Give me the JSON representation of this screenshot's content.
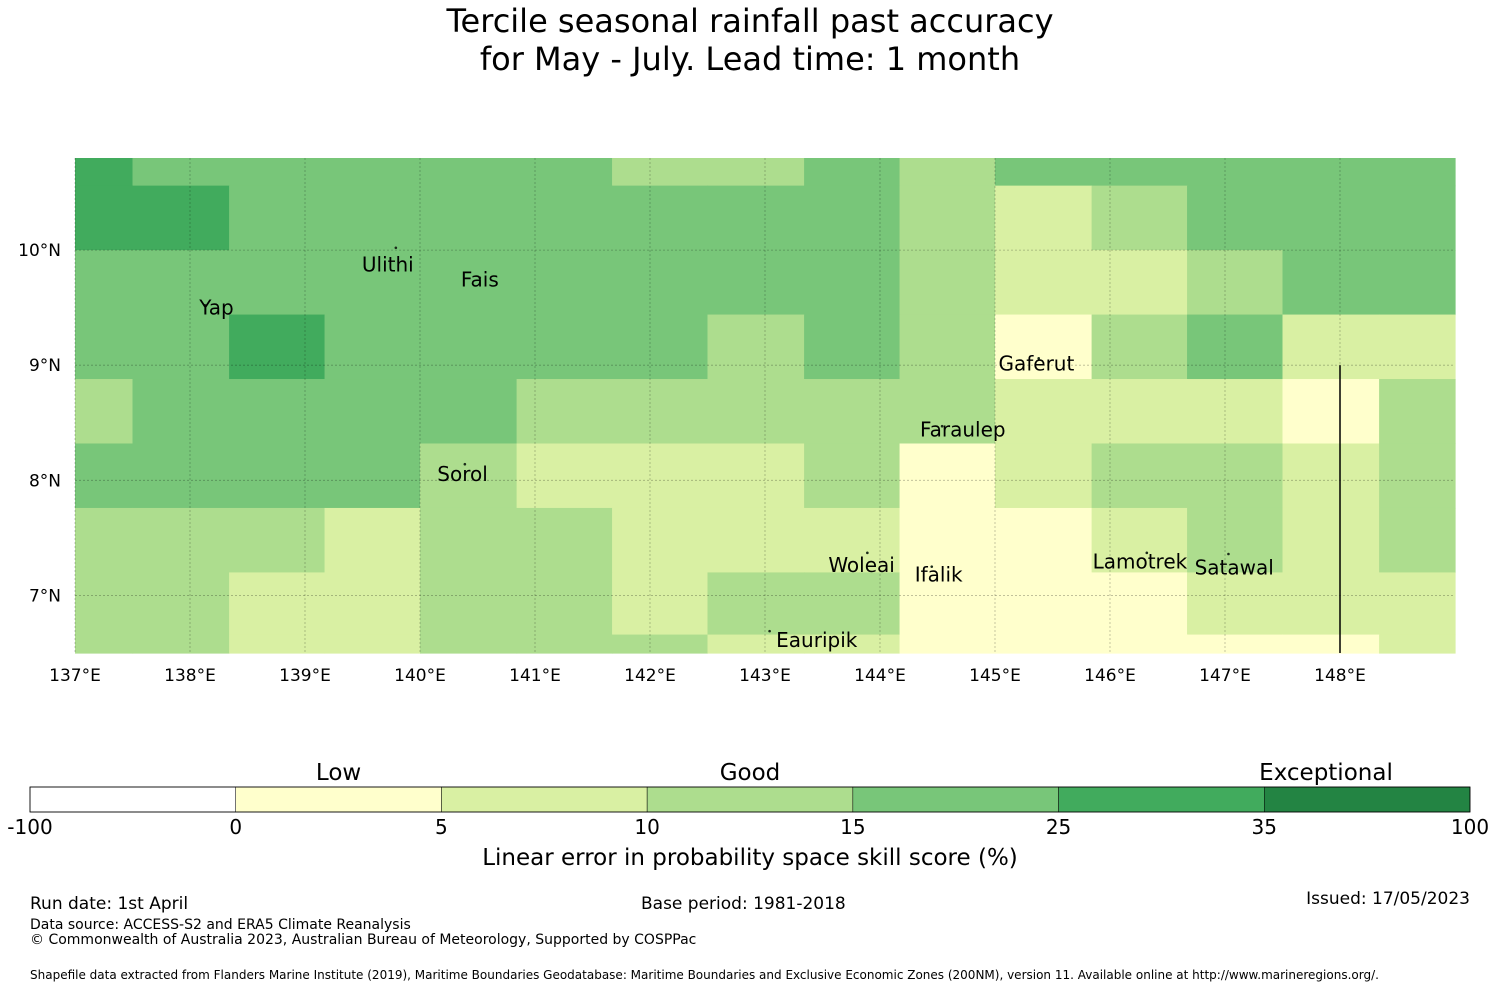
{
  "title": {
    "line1": "Tercile seasonal rainfall past accuracy",
    "line2": "for May - July. Lead time: 1 month"
  },
  "map": {
    "lon_range": [
      137.0,
      149.0
    ],
    "lat_range": [
      6.5,
      10.8
    ],
    "lon_ticks": [
      {
        "value": 137,
        "label": "137°E"
      },
      {
        "value": 138,
        "label": "138°E"
      },
      {
        "value": 139,
        "label": "139°E"
      },
      {
        "value": 140,
        "label": "140°E"
      },
      {
        "value": 141,
        "label": "141°E"
      },
      {
        "value": 142,
        "label": "142°E"
      },
      {
        "value": 143,
        "label": "143°E"
      },
      {
        "value": 144,
        "label": "144°E"
      },
      {
        "value": 145,
        "label": "145°E"
      },
      {
        "value": 146,
        "label": "146°E"
      },
      {
        "value": 147,
        "label": "147°E"
      },
      {
        "value": 148,
        "label": "148°E"
      }
    ],
    "lat_ticks": [
      {
        "value": 10,
        "label": "10°N"
      },
      {
        "value": 9,
        "label": "9°N"
      },
      {
        "value": 8,
        "label": "8°N"
      },
      {
        "value": 7,
        "label": "7°N"
      }
    ],
    "grid_lon_edges": [
      137.0,
      137.5,
      138.34,
      139.17,
      140.0,
      140.84,
      141.67,
      142.5,
      143.34,
      144.17,
      145.0,
      145.84,
      146.67,
      147.5,
      148.34,
      149.0
    ],
    "grid_lat_edges": [
      10.8,
      10.56,
      10.0,
      9.44,
      8.88,
      8.32,
      7.76,
      7.2,
      6.66,
      6.5
    ],
    "grid_classes": [
      [
        5,
        4,
        4,
        4,
        4,
        4,
        3,
        3,
        4,
        3,
        4,
        4,
        4,
        4,
        4
      ],
      [
        5,
        5,
        4,
        4,
        4,
        4,
        4,
        4,
        4,
        3,
        2,
        3,
        4,
        4,
        4
      ],
      [
        4,
        4,
        4,
        4,
        4,
        4,
        4,
        4,
        4,
        3,
        2,
        2,
        3,
        4,
        4
      ],
      [
        4,
        4,
        5,
        4,
        4,
        4,
        4,
        3,
        4,
        3,
        1,
        3,
        4,
        2,
        2
      ],
      [
        3,
        4,
        4,
        4,
        4,
        3,
        3,
        3,
        3,
        3,
        2,
        2,
        2,
        1,
        3
      ],
      [
        4,
        4,
        4,
        4,
        3,
        2,
        2,
        2,
        3,
        1,
        2,
        3,
        3,
        2,
        3
      ],
      [
        3,
        3,
        3,
        2,
        3,
        3,
        2,
        2,
        2,
        1,
        1,
        2,
        3,
        2,
        3
      ],
      [
        3,
        3,
        2,
        2,
        3,
        3,
        2,
        3,
        3,
        1,
        1,
        1,
        2,
        2,
        2
      ],
      [
        3,
        3,
        2,
        2,
        3,
        3,
        3,
        2,
        2,
        1,
        1,
        1,
        1,
        1,
        2
      ]
    ],
    "places": [
      {
        "name": "Ulithi",
        "lon": 139.72,
        "lat": 9.86,
        "dot_lon": 139.79,
        "dot_lat": 10.02
      },
      {
        "name": "Fais",
        "lon": 140.52,
        "lat": 9.73,
        "dot_lon": 140.52,
        "dot_lat": 9.76
      },
      {
        "name": "Yap",
        "lon": 138.23,
        "lat": 9.49,
        "dot_lon": 138.13,
        "dot_lat": 9.52
      },
      {
        "name": "Gaferut",
        "lon": 145.36,
        "lat": 9.0,
        "dot_lon": 145.38,
        "dot_lat": 9.06
      },
      {
        "name": "Faraulep",
        "lon": 144.72,
        "lat": 8.43,
        "dot_lon": 144.54,
        "dot_lat": 8.47
      },
      {
        "name": "Sorol",
        "lon": 140.37,
        "lat": 8.04,
        "dot_lon": 140.39,
        "dot_lat": 8.14
      },
      {
        "name": "Woleai",
        "lon": 143.84,
        "lat": 7.25,
        "dot_lon": 143.89,
        "dot_lat": 7.37
      },
      {
        "name": "Ifalik",
        "lon": 144.51,
        "lat": 7.17,
        "dot_lon": 144.45,
        "dot_lat": 7.25
      },
      {
        "name": "Lamotrek",
        "lon": 146.26,
        "lat": 7.28,
        "dot_lon": 146.32,
        "dot_lat": 7.37
      },
      {
        "name": "Satawal",
        "lon": 147.08,
        "lat": 7.23,
        "dot_lon": 147.03,
        "dot_lat": 7.36
      },
      {
        "name": "Eauripik",
        "lon": 143.45,
        "lat": 6.6,
        "dot_lon": 143.04,
        "dot_lat": 6.69
      }
    ],
    "boundary_line": {
      "lon": 148.0,
      "lat_start": 9.0,
      "lat_end": 6.5
    }
  },
  "legend": {
    "headers": [
      {
        "label": "Low",
        "at": 1.5
      },
      {
        "label": "Good",
        "at": 3.5
      },
      {
        "label": "Exceptional",
        "at": 6.3
      }
    ],
    "bins": [
      {
        "from": "-100",
        "to": "0",
        "color": "#ffffff"
      },
      {
        "from": "0",
        "to": "5",
        "color": "#ffffcc"
      },
      {
        "from": "5",
        "to": "10",
        "color": "#d9f0a3"
      },
      {
        "from": "10",
        "to": "15",
        "color": "#addd8e"
      },
      {
        "from": "15",
        "to": "25",
        "color": "#78c679"
      },
      {
        "from": "25",
        "to": "35",
        "color": "#41ab5d"
      },
      {
        "from": "35",
        "to": "100",
        "color": "#238443"
      }
    ],
    "ticks": [
      "-100",
      "0",
      "5",
      "10",
      "15",
      "25",
      "35",
      "100"
    ],
    "axis_label": "Linear error in probability space skill score (%)"
  },
  "footer": {
    "run_date": "Run date: 1st April",
    "base_period": "Base period: 1981-2018",
    "issued": "Issued: 17/05/2023",
    "data_source": "Data source: ACCESS-S2 and ERA5 Climate Reanalysis",
    "copyright": "© Commonwealth of Australia 2023, Australian Bureau of Meteorology, Supported by COSPPac",
    "shapefile": "Shapefile data extracted from Flanders Marine Institute (2019), Maritime Boundaries Geodatabase: Maritime Boundaries and Exclusive Economic Zones (200NM), version 11. Available online at http://www.marineregions.org/."
  }
}
